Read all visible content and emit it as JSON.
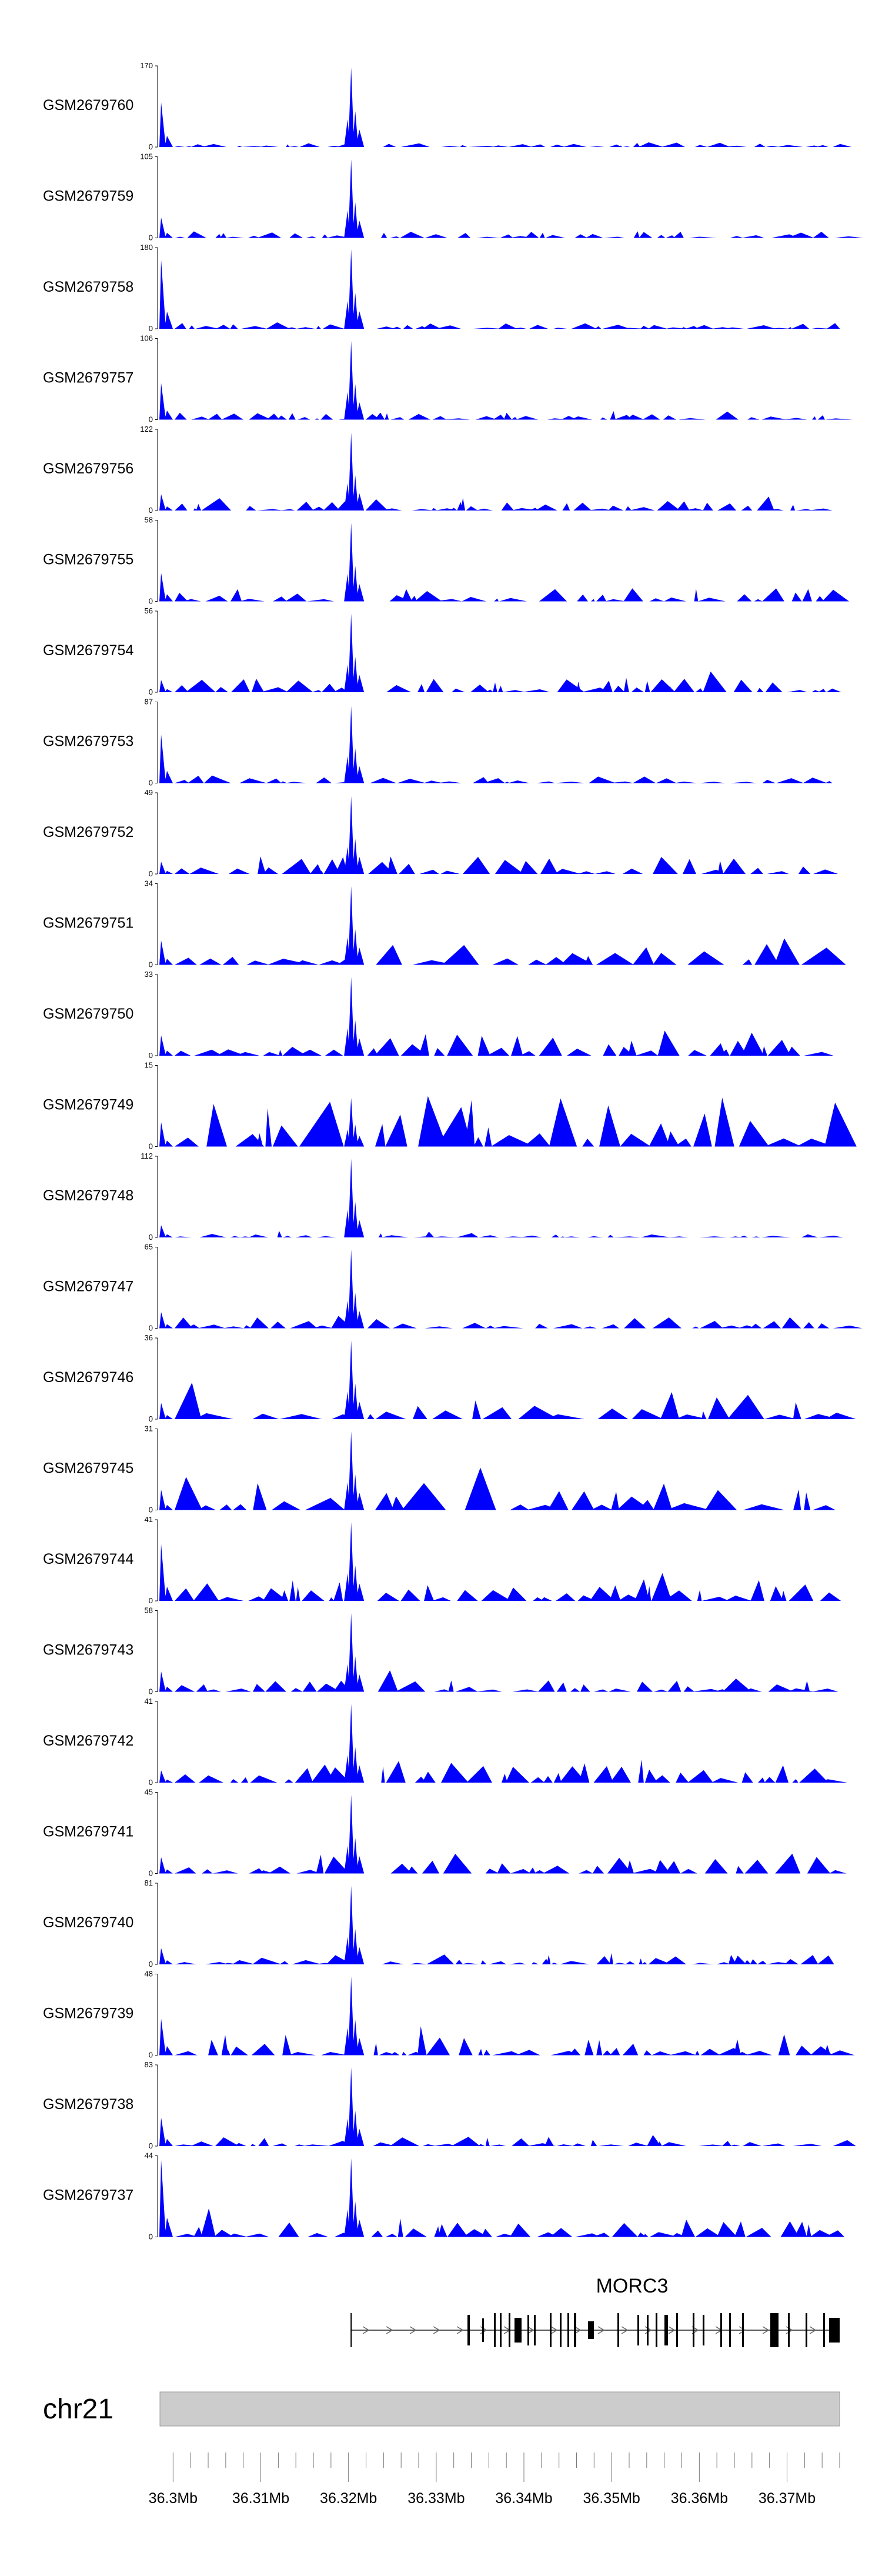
{
  "chart_data": {
    "type": "area",
    "chromosome": "chr21",
    "gene": {
      "name": "MORC3",
      "strand": "+",
      "start_mb": 36.3203,
      "end_mb": 36.376
    },
    "x": {
      "domain": [
        36.2985,
        36.376
      ],
      "ticks": [
        "36.3Mb",
        "36.31Mb",
        "36.32Mb",
        "36.33Mb",
        "36.34Mb",
        "36.35Mb",
        "36.36Mb",
        "36.37Mb"
      ],
      "tick_values": [
        36.3,
        36.31,
        36.32,
        36.33,
        36.34,
        36.35,
        36.36,
        36.37
      ]
    },
    "colors": {
      "signal": "#0000ff",
      "ideogram": "#cccccc"
    },
    "tracks": [
      {
        "name": "GSM2679760",
        "ymax": "170",
        "ylim": [
          0,
          170
        ],
        "peak_frac": 0.98,
        "noise": 0.06,
        "left_frac": 0.55,
        "seed": 1
      },
      {
        "name": "GSM2679759",
        "ymax": "105",
        "ylim": [
          0,
          105
        ],
        "peak_frac": 0.97,
        "noise": 0.09,
        "left_frac": 0.25,
        "seed": 2
      },
      {
        "name": "GSM2679758",
        "ymax": "180",
        "ylim": [
          0,
          180
        ],
        "peak_frac": 0.98,
        "noise": 0.07,
        "left_frac": 0.85,
        "seed": 3
      },
      {
        "name": "GSM2679757",
        "ymax": "106",
        "ylim": [
          0,
          106
        ],
        "peak_frac": 0.97,
        "noise": 0.1,
        "left_frac": 0.45,
        "seed": 4
      },
      {
        "name": "GSM2679756",
        "ymax": "122",
        "ylim": [
          0,
          122
        ],
        "peak_frac": 0.96,
        "noise": 0.12,
        "left_frac": 0.2,
        "seed": 5
      },
      {
        "name": "GSM2679755",
        "ymax": "58",
        "ylim": [
          0,
          58
        ],
        "peak_frac": 0.97,
        "noise": 0.18,
        "left_frac": 0.35,
        "seed": 6
      },
      {
        "name": "GSM2679754",
        "ymax": "56",
        "ylim": [
          0,
          56
        ],
        "peak_frac": 0.97,
        "noise": 0.18,
        "left_frac": 0.15,
        "seed": 7
      },
      {
        "name": "GSM2679753",
        "ymax": "87",
        "ylim": [
          0,
          87
        ],
        "peak_frac": 0.95,
        "noise": 0.1,
        "left_frac": 0.6,
        "seed": 8
      },
      {
        "name": "GSM2679752",
        "ymax": "49",
        "ylim": [
          0,
          49
        ],
        "peak_frac": 0.96,
        "noise": 0.22,
        "left_frac": 0.15,
        "seed": 9
      },
      {
        "name": "GSM2679751",
        "ymax": "34",
        "ylim": [
          0,
          34
        ],
        "peak_frac": 0.97,
        "noise": 0.35,
        "left_frac": 0.3,
        "seed": 10
      },
      {
        "name": "GSM2679750",
        "ymax": "33",
        "ylim": [
          0,
          33
        ],
        "peak_frac": 0.97,
        "noise": 0.3,
        "left_frac": 0.25,
        "seed": 11
      },
      {
        "name": "GSM2679749",
        "ymax": "15",
        "ylim": [
          0,
          15
        ],
        "peak_frac": 0.6,
        "noise": 0.65,
        "left_frac": 0.3,
        "seed": 12
      },
      {
        "name": "GSM2679748",
        "ymax": "112",
        "ylim": [
          0,
          112
        ],
        "peak_frac": 0.97,
        "noise": 0.08,
        "left_frac": 0.15,
        "seed": 13
      },
      {
        "name": "GSM2679747",
        "ymax": "65",
        "ylim": [
          0,
          65
        ],
        "peak_frac": 0.97,
        "noise": 0.14,
        "left_frac": 0.2,
        "seed": 14
      },
      {
        "name": "GSM2679746",
        "ymax": "36",
        "ylim": [
          0,
          36
        ],
        "peak_frac": 0.97,
        "noise": 0.35,
        "left_frac": 0.2,
        "seed": 15
      },
      {
        "name": "GSM2679745",
        "ymax": "31",
        "ylim": [
          0,
          31
        ],
        "peak_frac": 0.97,
        "noise": 0.38,
        "left_frac": 0.25,
        "seed": 16
      },
      {
        "name": "GSM2679744",
        "ymax": "41",
        "ylim": [
          0,
          41
        ],
        "peak_frac": 0.97,
        "noise": 0.28,
        "left_frac": 0.7,
        "seed": 17
      },
      {
        "name": "GSM2679743",
        "ymax": "58",
        "ylim": [
          0,
          58
        ],
        "peak_frac": 0.97,
        "noise": 0.18,
        "left_frac": 0.25,
        "seed": 18
      },
      {
        "name": "GSM2679742",
        "ymax": "41",
        "ylim": [
          0,
          41
        ],
        "peak_frac": 0.97,
        "noise": 0.28,
        "left_frac": 0.15,
        "seed": 19
      },
      {
        "name": "GSM2679741",
        "ymax": "45",
        "ylim": [
          0,
          45
        ],
        "peak_frac": 0.97,
        "noise": 0.26,
        "left_frac": 0.2,
        "seed": 20
      },
      {
        "name": "GSM2679740",
        "ymax": "81",
        "ylim": [
          0,
          81
        ],
        "peak_frac": 0.97,
        "noise": 0.12,
        "left_frac": 0.2,
        "seed": 21
      },
      {
        "name": "GSM2679739",
        "ymax": "48",
        "ylim": [
          0,
          48
        ],
        "peak_frac": 0.97,
        "noise": 0.26,
        "left_frac": 0.45,
        "seed": 22
      },
      {
        "name": "GSM2679738",
        "ymax": "83",
        "ylim": [
          0,
          83
        ],
        "peak_frac": 0.97,
        "noise": 0.12,
        "left_frac": 0.35,
        "seed": 23
      },
      {
        "name": "GSM2679737",
        "ymax": "44",
        "ylim": [
          0,
          44
        ],
        "peak_frac": 0.97,
        "noise": 0.26,
        "left_frac": 0.95,
        "seed": 24
      }
    ]
  }
}
